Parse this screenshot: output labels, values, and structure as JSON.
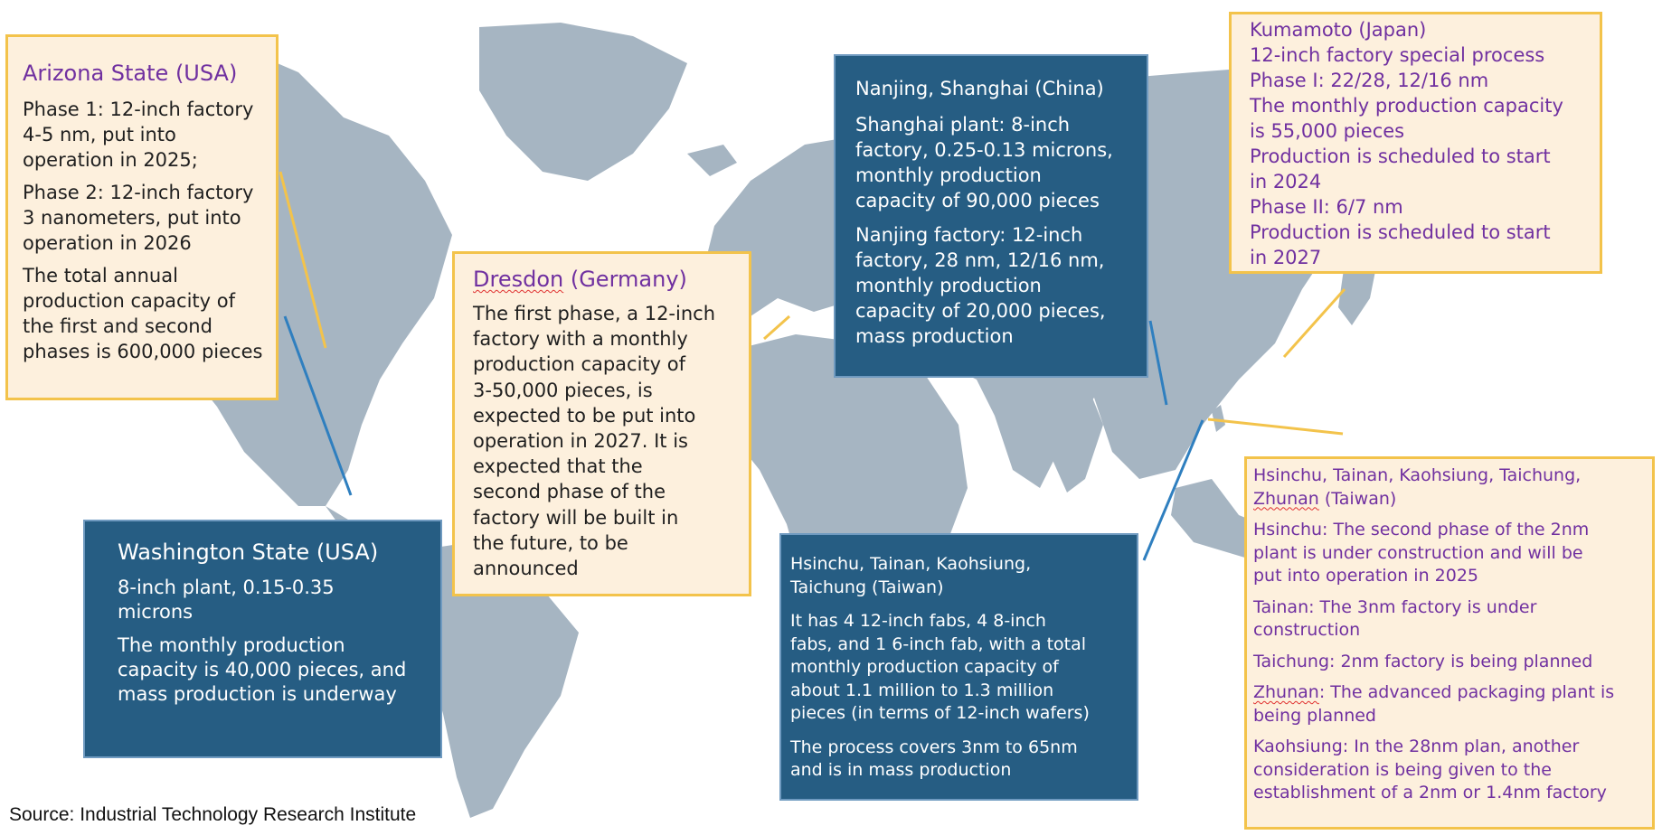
{
  "colors": {
    "land": "#a6b5c2",
    "cream_fill": "#fdf0dd",
    "cream_border": "#f3c34b",
    "blue_fill": "#265d83",
    "purple_text": "#7030a0",
    "yellow_leader": "#f3c34b",
    "blue_leader": "#2f7fbf"
  },
  "arizona": {
    "title": "Arizona State (USA)",
    "p1": "Phase 1: 12-inch factory\n4-5 nm, put into\noperation in 2025;",
    "p2": "Phase 2: 12-inch factory\n3 nanometers, put into\noperation in 2026",
    "p3": "The total annual\nproduction capacity of\nthe first and second\nphases is 600,000 pieces"
  },
  "washington": {
    "title": "Washington State (USA)",
    "p1": "8-inch plant, 0.15-0.35\nmicrons",
    "p2": "The monthly production\ncapacity is 40,000 pieces, and\nmass production is underway"
  },
  "dresden": {
    "title_word": "Dresdon",
    "title_rest": " (Germany)",
    "p1": "The first phase, a 12-inch\nfactory with a monthly\nproduction capacity of\n3-50,000 pieces, is\nexpected to be put into\noperation in 2027. It is\nexpected that the\nsecond phase of the\nfactory will be built in\nthe future, to be\nannounced"
  },
  "china": {
    "title": "Nanjing, Shanghai (China)",
    "p1": "Shanghai plant: 8-inch\nfactory, 0.25-0.13 microns,\nmonthly production\ncapacity of 90,000 pieces",
    "p2": "Nanjing factory: 12-inch\nfactory, 28 nm, 12/16 nm,\nmonthly production\ncapacity of 20,000 pieces,\nmass production"
  },
  "japan": {
    "l1": "Kumamoto (Japan)",
    "l2": "12-inch factory special process",
    "l3": "Phase I: 22/28, 12/16 nm",
    "l4": "The monthly production capacity\nis 55,000 pieces",
    "l5": "Production is scheduled to start\nin 2024",
    "l6": "Phase II: 6/7 nm",
    "l7": "Production is scheduled to start\nin 2027"
  },
  "taiwan_blue": {
    "title": "Hsinchu, Tainan, Kaohsiung,\nTaichung (Taiwan)",
    "p1": "It has 4 12-inch fabs, 4 8-inch\nfabs, and 1 6-inch fab, with a total\nmonthly production capacity of\nabout 1.1 million to 1.3 million\npieces (in terms of 12-inch wafers)",
    "p2": "The process covers 3nm to 65nm\nand is in mass production"
  },
  "taiwan_cream": {
    "title_a": "Hsinchu, Tainan, Kaohsiung, Taichung,",
    "title_b_word": "Zhunan",
    "title_b_rest": " (Taiwan)",
    "p1": "Hsinchu: The second phase of the 2nm\nplant is under construction and will be\nput into operation in 2025",
    "p2": "Tainan: The 3nm factory is under\nconstruction",
    "p3": "Taichung: 2nm factory is being planned",
    "p4_word": "Zhunan",
    "p4_rest": ": The advanced packaging plant is\nbeing planned",
    "p5": "Kaohsiung: In the 28nm plan, another\nconsideration is being given to the\nestablishment of a 2nm or 1.4nm factory"
  },
  "source": "Source: Industrial Technology Research Institute"
}
